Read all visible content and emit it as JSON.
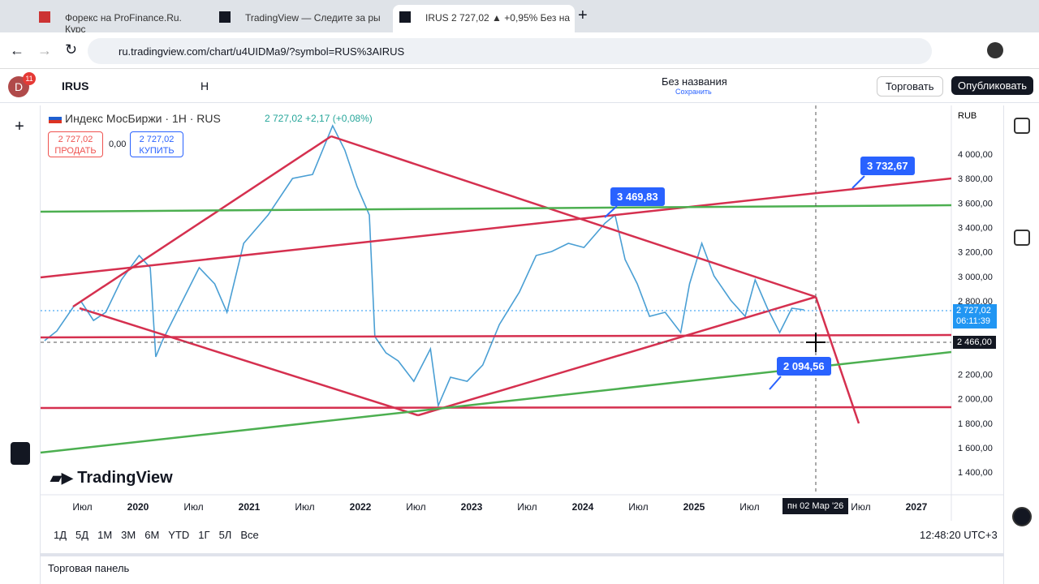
{
  "browser": {
    "tabs": [
      "Форекс на ProFinance.Ru. Курс",
      "TradingView — Следите за ры",
      "IRUS 2 727,02 ▲ +0,95% Без на"
    ],
    "url": "ru.tradingview.com/chart/u4UIDMa9/?symbol=RUS%3AIRUS",
    "avatar_badge": "11"
  },
  "toolbar": {
    "avatar": "D",
    "symbol": "IRUS",
    "interval": "Н",
    "layout_name": "Без названия",
    "save": "Сохранить",
    "trade": "Торговать",
    "publish": "Опубликовать"
  },
  "legend": {
    "title": "Индекс МосБиржи · 1Н · RUS",
    "quote": "2 727,02 +2,17 (+0,08%)",
    "sell_price": "2 727,02",
    "sell": "ПРОДАТЬ",
    "spread": "0,00",
    "buy_price": "2 727,02",
    "buy": "КУПИТЬ"
  },
  "chart": {
    "type": "line",
    "color": "#4a9fd4",
    "x": [
      2019.16,
      2019.27,
      2019.42,
      2019.49,
      2019.6,
      2019.71,
      2019.85,
      2020.01,
      2020.11,
      2020.16,
      2020.22,
      2020.33,
      2020.55,
      2020.69,
      2020.8,
      2020.95,
      2021.17,
      2021.39,
      2021.57,
      2021.75,
      2021.86,
      2021.97,
      2022.08,
      2022.13,
      2022.23,
      2022.34,
      2022.48,
      2022.63,
      2022.7,
      2022.81,
      2022.96,
      2023.1,
      2023.25,
      2023.43,
      2023.58,
      2023.72,
      2023.87,
      2024.01,
      2024.2,
      2024.29,
      2024.38,
      2024.49,
      2024.6,
      2024.74,
      2024.88,
      2024.96,
      2025.07,
      2025.18,
      2025.33,
      2025.46,
      2025.55,
      2025.66,
      2025.77,
      2025.88,
      2025.99
    ],
    "values": [
      2475,
      2554,
      2753,
      2793,
      2640,
      2707,
      2972,
      3171,
      3072,
      2342,
      2475,
      2674,
      3072,
      2939,
      2707,
      3271,
      3503,
      3801,
      3834,
      4232,
      4033,
      3735,
      3503,
      2508,
      2375,
      2309,
      2143,
      2408,
      1944,
      2176,
      2143,
      2276,
      2607,
      2873,
      3171,
      3204,
      3271,
      3237,
      3436,
      3503,
      3138,
      2939,
      2674,
      2707,
      2541,
      2939,
      3271,
      3005,
      2806,
      2674,
      2972,
      2740,
      2541,
      2740,
      2727
    ],
    "xlim": [
      2019.124,
      2027.314
    ],
    "ylim": [
      1215,
      4398
    ],
    "xticks": [
      {
        "value": 2019.5,
        "label": "Июл"
      },
      2020,
      {
        "value": 2020.5,
        "label": "Июл"
      },
      2021,
      {
        "value": 2021.5,
        "label": "Июл"
      },
      2022,
      {
        "value": 2022.5,
        "label": "Июл"
      },
      2023,
      {
        "value": 2023.5,
        "label": "Июл"
      },
      2024,
      {
        "value": 2024.5,
        "label": "Июл"
      },
      2025,
      {
        "value": 2025.5,
        "label": "Июл"
      },
      {
        "value": 2026.5,
        "label": "Июл"
      },
      2027
    ],
    "yticks": [
      {
        "value": 4000,
        "label": "4 000,00"
      },
      {
        "value": 3800,
        "label": "3 800,00"
      },
      {
        "value": 3600,
        "label": "3 600,00"
      },
      {
        "value": 3400,
        "label": "3 400,00"
      },
      {
        "value": 3200,
        "label": "3 200,00"
      },
      {
        "value": 3000,
        "label": "3 000,00"
      },
      {
        "value": 2800,
        "label": "2 800,00"
      },
      {
        "value": 2200,
        "label": "2 200,00"
      },
      {
        "value": 2000,
        "label": "2 000,00"
      },
      {
        "value": 1800,
        "label": "1 800,00"
      },
      {
        "value": 1600,
        "label": "1 600,00"
      },
      {
        "value": 1400,
        "label": "1 400,00"
      }
    ],
    "currency": "RUB",
    "last_price_label": "2 727,02",
    "countdown": "06:11:39",
    "crosshair_price": "2 466,00",
    "crosshair_date": "пн 02 Мар '26",
    "watermark": "TradingView",
    "annotations": [
      "3 732,67",
      "3 469,83",
      "2 094,56"
    ]
  },
  "bottom_bar": {
    "ranges": [
      "1Д",
      "5Д",
      "1М",
      "3М",
      "6М",
      "YTD",
      "1Г",
      "5Л",
      "Все"
    ],
    "clock": "12:48:20 UTC+3"
  },
  "panel": {
    "title": "Торговая панель"
  }
}
